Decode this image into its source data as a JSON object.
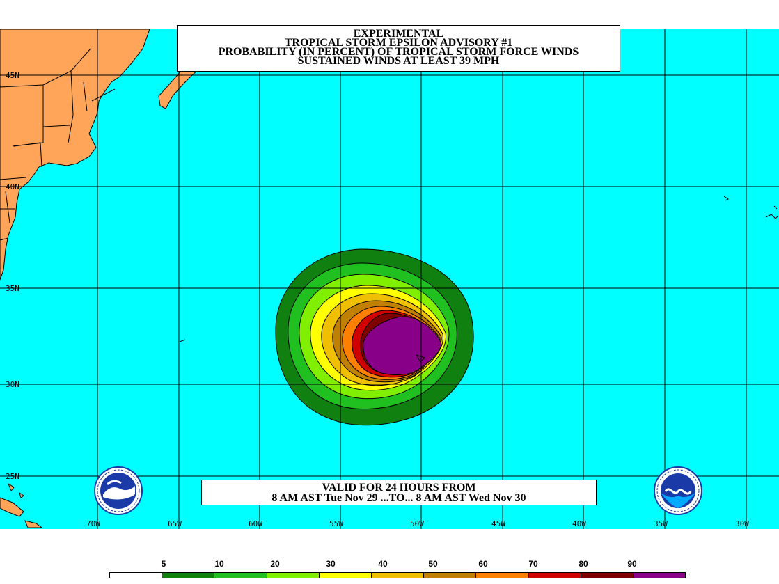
{
  "title": {
    "line1": "EXPERIMENTAL",
    "line2": "TROPICAL STORM EPSILON ADVISORY #1",
    "line3": "PROBABILITY (IN PERCENT) OF TROPICAL STORM FORCE WINDS",
    "line4": "SUSTAINED WINDS AT LEAST 39 MPH"
  },
  "valid": {
    "line1": "VALID FOR 24 HOURS FROM",
    "line2": "8 AM AST Tue Nov 29 ...TO... 8 AM AST Wed Nov 30"
  },
  "lat_labels": [
    "45N",
    "40N",
    "35N",
    "30N",
    "25N"
  ],
  "lon_labels": [
    "70W",
    "65W",
    "60W",
    "55W",
    "50W",
    "45W",
    "40W",
    "35W",
    "30W"
  ],
  "legend": {
    "thresholds": [
      "5",
      "10",
      "20",
      "30",
      "40",
      "50",
      "60",
      "70",
      "80",
      "90"
    ],
    "colors": [
      "#ffffff",
      "#108010",
      "#20c020",
      "#80f000",
      "#ffff00",
      "#f0c000",
      "#c08000",
      "#ff8000",
      "#d00000",
      "#800000",
      "#880088"
    ]
  },
  "colors": {
    "ocean": "#00ffff",
    "land": "#ffa55a",
    "storm_center": "#8b008b"
  },
  "logos": {
    "left": "nws-logo-icon",
    "right": "noaa-logo-icon"
  }
}
